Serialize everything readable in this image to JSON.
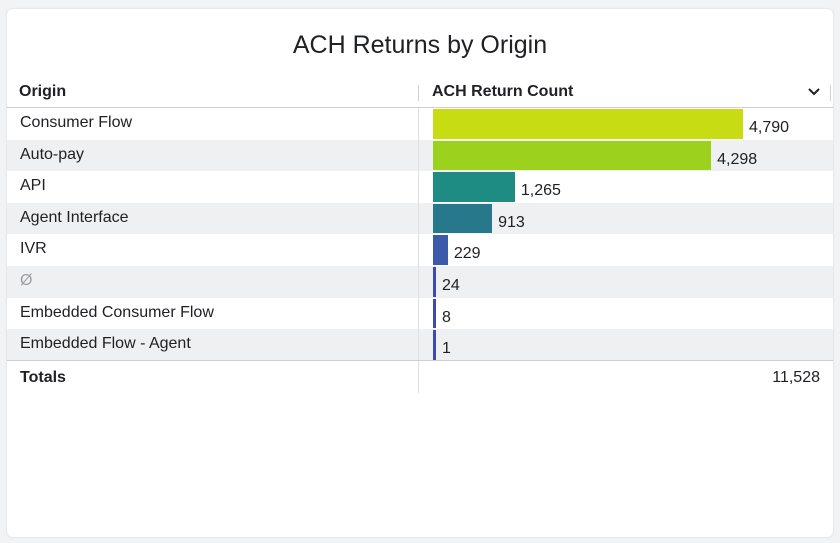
{
  "title": "ACH Returns by Origin",
  "columns": {
    "origin": "Origin",
    "count": "ACH Return Count"
  },
  "sort_icon": "chevron-down-icon",
  "totals": {
    "label": "Totals",
    "value": "11,528"
  },
  "chart_data": {
    "type": "bar",
    "orientation": "horizontal",
    "title": "ACH Returns by Origin",
    "xlabel": "ACH Return Count",
    "ylabel": "Origin",
    "categories": [
      "Consumer Flow",
      "Auto-pay",
      "API",
      "Agent Interface",
      "IVR",
      "Ø",
      "Embedded Consumer Flow",
      "Embedded Flow - Agent"
    ],
    "values": [
      4790,
      4298,
      1265,
      913,
      229,
      24,
      8,
      1
    ],
    "value_labels": [
      "4,790",
      "4,298",
      "1,265",
      "913",
      "229",
      "24",
      "8",
      "1"
    ],
    "colors": [
      "#c8dc14",
      "#9cd21e",
      "#1e8c82",
      "#28788c",
      "#3c5aaa",
      "#3c4bb4",
      "#3c4bb4",
      "#3c4bb4"
    ],
    "xlim": [
      0,
      4790
    ]
  }
}
